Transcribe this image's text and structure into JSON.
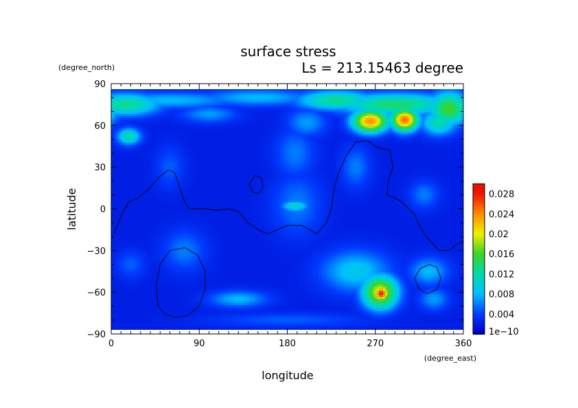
{
  "chart_data": {
    "type": "heatmap",
    "title": "surface stress",
    "subtitle": "Ls = 213.15463 degree",
    "xlabel": "longitude",
    "ylabel": "latitude",
    "x_units": "(degree_east)",
    "y_units": "(degree_north)",
    "xlim": [
      0,
      360
    ],
    "ylim": [
      -90,
      90
    ],
    "x_ticks": [
      "0",
      "90",
      "180",
      "270",
      "360"
    ],
    "y_ticks": [
      "90",
      "60",
      "30",
      "0",
      "−30",
      "−60",
      "−90"
    ],
    "x_tick_values": [
      0,
      90,
      180,
      270,
      360
    ],
    "y_tick_values": [
      90,
      60,
      30,
      0,
      -30,
      -60,
      -90
    ],
    "colorbar": {
      "min": 0,
      "max": 0.03,
      "labels": [
        "1e−10",
        "0.004",
        "0.008",
        "0.012",
        "0.016",
        "0.02",
        "0.024",
        "0.028"
      ],
      "label_values": [
        0,
        0.004,
        0.008,
        0.012,
        0.016,
        0.02,
        0.024,
        0.028
      ]
    },
    "background_value": 0.002,
    "features": [
      {
        "lon": 15,
        "lat": 75,
        "rx": 35,
        "ry": 8,
        "v": 0.013
      },
      {
        "lon": 60,
        "lat": 78,
        "rx": 70,
        "ry": 6,
        "v": 0.008
      },
      {
        "lon": 150,
        "lat": 80,
        "rx": 60,
        "ry": 6,
        "v": 0.008
      },
      {
        "lon": 230,
        "lat": 78,
        "rx": 40,
        "ry": 7,
        "v": 0.013
      },
      {
        "lon": 290,
        "lat": 75,
        "rx": 60,
        "ry": 8,
        "v": 0.014
      },
      {
        "lon": 345,
        "lat": 72,
        "rx": 20,
        "ry": 12,
        "v": 0.016
      },
      {
        "lon": 265,
        "lat": 63,
        "rx": 18,
        "ry": 8,
        "v": 0.024
      },
      {
        "lon": 300,
        "lat": 64,
        "rx": 14,
        "ry": 8,
        "v": 0.025
      },
      {
        "lon": 335,
        "lat": 62,
        "rx": 18,
        "ry": 9,
        "v": 0.012
      },
      {
        "lon": 200,
        "lat": 62,
        "rx": 20,
        "ry": 10,
        "v": 0.007
      },
      {
        "lon": 100,
        "lat": 68,
        "rx": 28,
        "ry": 6,
        "v": 0.007
      },
      {
        "lon": 18,
        "lat": 52,
        "rx": 12,
        "ry": 6,
        "v": 0.012
      },
      {
        "lon": 188,
        "lat": 40,
        "rx": 20,
        "ry": 18,
        "v": 0.006
      },
      {
        "lon": 190,
        "lat": 3,
        "rx": 25,
        "ry": 22,
        "v": 0.006
      },
      {
        "lon": 188,
        "lat": 2,
        "rx": 14,
        "ry": 4,
        "v": 0.011
      },
      {
        "lon": 250,
        "lat": 30,
        "rx": 15,
        "ry": 15,
        "v": 0.006
      },
      {
        "lon": 320,
        "lat": 10,
        "rx": 15,
        "ry": 10,
        "v": 0.006
      },
      {
        "lon": 75,
        "lat": -30,
        "rx": 22,
        "ry": 15,
        "v": 0.006
      },
      {
        "lon": 60,
        "lat": 30,
        "rx": 15,
        "ry": 15,
        "v": 0.005
      },
      {
        "lon": 130,
        "lat": -65,
        "rx": 30,
        "ry": 6,
        "v": 0.008
      },
      {
        "lon": 20,
        "lat": -40,
        "rx": 15,
        "ry": 10,
        "v": 0.005
      },
      {
        "lon": 250,
        "lat": -45,
        "rx": 35,
        "ry": 15,
        "v": 0.009
      },
      {
        "lon": 275,
        "lat": -60,
        "rx": 18,
        "ry": 12,
        "v": 0.02
      },
      {
        "lon": 276,
        "lat": -61,
        "rx": 8,
        "ry": 6,
        "v": 0.028
      },
      {
        "lon": 325,
        "lat": -45,
        "rx": 20,
        "ry": 10,
        "v": 0.008
      },
      {
        "lon": 330,
        "lat": -65,
        "rx": 15,
        "ry": 8,
        "v": 0.007
      },
      {
        "lon": 180,
        "lat": -80,
        "rx": 80,
        "ry": 5,
        "v": 0.005
      }
    ],
    "contours": [
      [
        [
          3,
          -18
        ],
        [
          10,
          -5
        ],
        [
          18,
          5
        ],
        [
          28,
          8
        ],
        [
          38,
          14
        ],
        [
          48,
          22
        ],
        [
          58,
          28
        ],
        [
          65,
          26
        ],
        [
          70,
          15
        ],
        [
          75,
          5
        ],
        [
          80,
          0
        ],
        [
          95,
          0
        ],
        [
          110,
          -1
        ],
        [
          120,
          0
        ],
        [
          130,
          -2
        ],
        [
          140,
          -10
        ],
        [
          150,
          -15
        ],
        [
          160,
          -18
        ],
        [
          170,
          -15
        ],
        [
          180,
          -12
        ],
        [
          195,
          -12
        ],
        [
          210,
          -18
        ],
        [
          220,
          -10
        ],
        [
          225,
          0
        ],
        [
          228,
          15
        ],
        [
          232,
          25
        ],
        [
          240,
          38
        ],
        [
          250,
          48
        ],
        [
          262,
          49
        ],
        [
          272,
          44
        ],
        [
          285,
          42
        ],
        [
          288,
          30
        ],
        [
          283,
          20
        ],
        [
          282,
          10
        ],
        [
          295,
          6
        ],
        [
          310,
          -4
        ],
        [
          315,
          -12
        ],
        [
          322,
          -20
        ],
        [
          335,
          -30
        ],
        [
          345,
          -30
        ],
        [
          355,
          -25
        ],
        [
          360,
          -23
        ]
      ],
      [
        [
          48,
          -70
        ],
        [
          55,
          -76
        ],
        [
          65,
          -78
        ],
        [
          78,
          -77
        ],
        [
          90,
          -70
        ],
        [
          96,
          -58
        ],
        [
          96,
          -45
        ],
        [
          88,
          -33
        ],
        [
          75,
          -28
        ],
        [
          60,
          -30
        ],
        [
          50,
          -40
        ],
        [
          46,
          -55
        ],
        [
          48,
          -70
        ]
      ],
      [
        [
          141,
          18
        ],
        [
          145,
          12
        ],
        [
          151,
          11
        ],
        [
          155,
          15
        ],
        [
          154,
          22
        ],
        [
          147,
          24
        ],
        [
          141,
          18
        ]
      ],
      [
        [
          310,
          -50
        ],
        [
          315,
          -58
        ],
        [
          323,
          -61
        ],
        [
          333,
          -58
        ],
        [
          337,
          -50
        ],
        [
          333,
          -42
        ],
        [
          325,
          -40
        ],
        [
          316,
          -43
        ],
        [
          310,
          -50
        ]
      ]
    ]
  }
}
